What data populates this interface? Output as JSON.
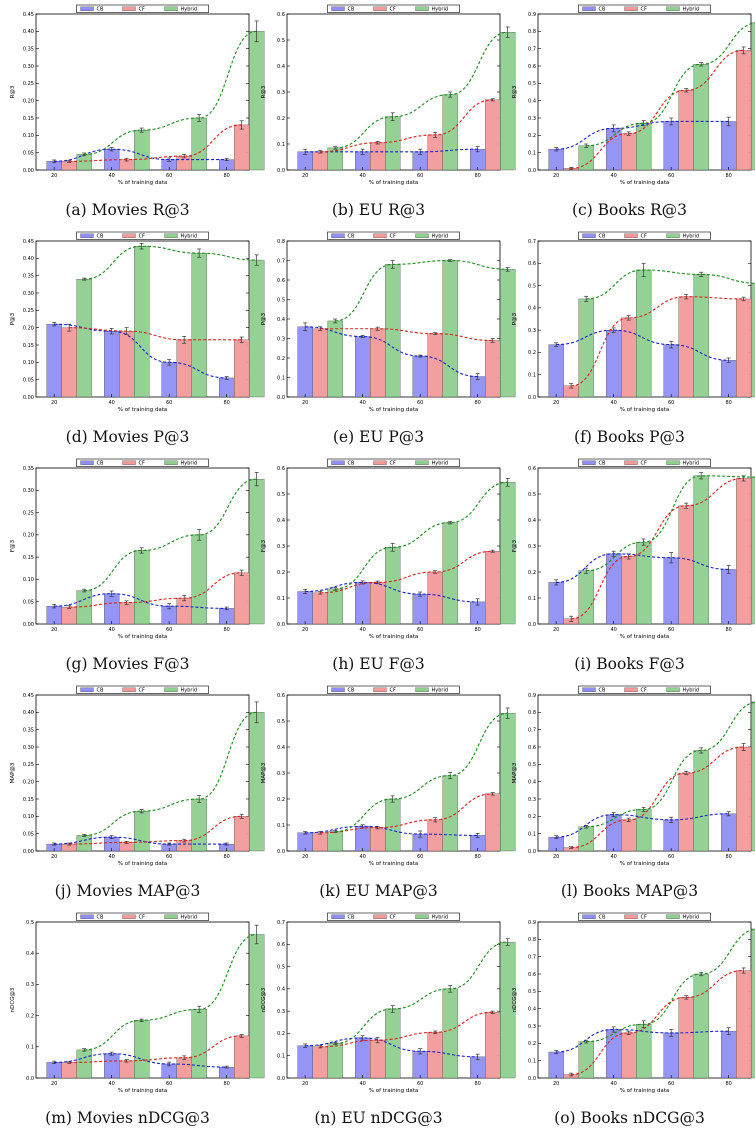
{
  "colors": {
    "CB": "#8f8ff5",
    "CF": "#f39a9a",
    "Hybrid": "#8fcf8f",
    "CB_line": "#1a24c8",
    "CF_line": "#d8241e",
    "Hybrid_line": "#1e8a1e"
  },
  "legend": [
    "CB",
    "CF",
    "Hybrid"
  ],
  "chart_data": [
    {
      "type": "bar",
      "caption": "(a) Movies R@3",
      "ylabel": "R@3",
      "xlabel": "% of training data",
      "categories": [
        "20",
        "40",
        "60",
        "80"
      ],
      "ylim": [
        0,
        0.45
      ],
      "yticks": [
        "0.00",
        "0.05",
        "0.10",
        "0.15",
        "0.20",
        "0.25",
        "0.30",
        "0.35",
        "0.40",
        "0.45"
      ],
      "series": [
        {
          "name": "CB",
          "values": [
            0.025,
            0.06,
            0.03,
            0.03
          ],
          "errors": [
            0.004,
            0.005,
            0.005,
            0.003
          ]
        },
        {
          "name": "CF",
          "values": [
            0.025,
            0.03,
            0.04,
            0.13
          ],
          "errors": [
            0.003,
            0.004,
            0.005,
            0.012
          ]
        },
        {
          "name": "Hybrid",
          "values": [
            0.045,
            0.115,
            0.15,
            0.4
          ],
          "errors": [
            0.004,
            0.006,
            0.01,
            0.03
          ]
        }
      ]
    },
    {
      "type": "bar",
      "caption": "(b) EU R@3",
      "ylabel": "R@3",
      "xlabel": "% of training data",
      "categories": [
        "20",
        "40",
        "60",
        "80"
      ],
      "ylim": [
        0,
        0.6
      ],
      "yticks": [
        "0.0",
        "0.1",
        "0.2",
        "0.3",
        "0.4",
        "0.5",
        "0.6"
      ],
      "series": [
        {
          "name": "CB",
          "values": [
            0.07,
            0.07,
            0.07,
            0.08
          ],
          "errors": [
            0.01,
            0.01,
            0.01,
            0.01
          ]
        },
        {
          "name": "CF",
          "values": [
            0.07,
            0.105,
            0.135,
            0.27
          ],
          "errors": [
            0.005,
            0.005,
            0.01,
            0.004
          ]
        },
        {
          "name": "Hybrid",
          "values": [
            0.085,
            0.205,
            0.29,
            0.53
          ],
          "errors": [
            0.005,
            0.015,
            0.01,
            0.02
          ]
        }
      ]
    },
    {
      "type": "bar",
      "caption": "(c) Books R@3",
      "ylabel": "R@3",
      "xlabel": "% of training data",
      "categories": [
        "20",
        "40",
        "60",
        "80"
      ],
      "ylim": [
        0,
        0.9
      ],
      "yticks": [
        "0.0",
        "0.1",
        "0.2",
        "0.3",
        "0.4",
        "0.5",
        "0.6",
        "0.7",
        "0.8",
        "0.9"
      ],
      "series": [
        {
          "name": "CB",
          "values": [
            0.12,
            0.24,
            0.28,
            0.28
          ],
          "errors": [
            0.01,
            0.02,
            0.02,
            0.025
          ]
        },
        {
          "name": "CF",
          "values": [
            0.01,
            0.21,
            0.46,
            0.69
          ],
          "errors": [
            0.005,
            0.01,
            0.01,
            0.02
          ]
        },
        {
          "name": "Hybrid",
          "values": [
            0.14,
            0.27,
            0.61,
            0.85
          ],
          "errors": [
            0.01,
            0.015,
            0.01,
            0.02
          ]
        }
      ]
    },
    {
      "type": "bar",
      "caption": "(d) Movies P@3",
      "ylabel": "P@3",
      "xlabel": "% of training data",
      "categories": [
        "20",
        "40",
        "60",
        "80"
      ],
      "ylim": [
        0,
        0.45
      ],
      "yticks": [
        "0.00",
        "0.05",
        "0.10",
        "0.15",
        "0.20",
        "0.25",
        "0.30",
        "0.35",
        "0.40",
        "0.45"
      ],
      "series": [
        {
          "name": "CB",
          "values": [
            0.21,
            0.19,
            0.1,
            0.055
          ],
          "errors": [
            0.005,
            0.008,
            0.008,
            0.004
          ]
        },
        {
          "name": "CF",
          "values": [
            0.2,
            0.19,
            0.165,
            0.165
          ],
          "errors": [
            0.01,
            0.01,
            0.01,
            0.008
          ]
        },
        {
          "name": "Hybrid",
          "values": [
            0.34,
            0.435,
            0.415,
            0.395
          ],
          "errors": [
            0.003,
            0.008,
            0.012,
            0.015
          ]
        }
      ]
    },
    {
      "type": "bar",
      "caption": "(e) EU P@3",
      "ylabel": "P@3",
      "xlabel": "% of training data",
      "categories": [
        "20",
        "40",
        "60",
        "80"
      ],
      "ylim": [
        0,
        0.8
      ],
      "yticks": [
        "0.0",
        "0.1",
        "0.2",
        "0.3",
        "0.4",
        "0.5",
        "0.6",
        "0.7",
        "0.8"
      ],
      "series": [
        {
          "name": "CB",
          "values": [
            0.36,
            0.31,
            0.21,
            0.105
          ],
          "errors": [
            0.02,
            0.006,
            0.005,
            0.015
          ]
        },
        {
          "name": "CF",
          "values": [
            0.35,
            0.35,
            0.325,
            0.29
          ],
          "errors": [
            0.01,
            0.008,
            0.005,
            0.01
          ]
        },
        {
          "name": "Hybrid",
          "values": [
            0.39,
            0.68,
            0.7,
            0.655
          ],
          "errors": [
            0.01,
            0.02,
            0.005,
            0.01
          ]
        }
      ]
    },
    {
      "type": "bar",
      "caption": "(f) Books P@3",
      "ylabel": "P@3",
      "xlabel": "% of training data",
      "categories": [
        "20",
        "40",
        "60",
        "80"
      ],
      "ylim": [
        0,
        0.7
      ],
      "yticks": [
        "0.0",
        "0.1",
        "0.2",
        "0.3",
        "0.4",
        "0.5",
        "0.6",
        "0.7"
      ],
      "series": [
        {
          "name": "CB",
          "values": [
            0.235,
            0.3,
            0.235,
            0.165
          ],
          "errors": [
            0.008,
            0.01,
            0.015,
            0.01
          ]
        },
        {
          "name": "CF",
          "values": [
            0.05,
            0.355,
            0.45,
            0.44
          ],
          "errors": [
            0.01,
            0.01,
            0.01,
            0.008
          ]
        },
        {
          "name": "Hybrid",
          "values": [
            0.44,
            0.57,
            0.55,
            0.51
          ],
          "errors": [
            0.012,
            0.03,
            0.01,
            0.005
          ]
        }
      ]
    },
    {
      "type": "bar",
      "caption": "(g) Movies F@3",
      "ylabel": "F@3",
      "xlabel": "% of training data",
      "categories": [
        "20",
        "40",
        "60",
        "80"
      ],
      "ylim": [
        0,
        0.35
      ],
      "yticks": [
        "0.00",
        "0.05",
        "0.10",
        "0.15",
        "0.20",
        "0.25",
        "0.30",
        "0.35"
      ],
      "series": [
        {
          "name": "CB",
          "values": [
            0.04,
            0.068,
            0.04,
            0.035
          ],
          "errors": [
            0.004,
            0.006,
            0.006,
            0.003
          ]
        },
        {
          "name": "CF",
          "values": [
            0.038,
            0.048,
            0.058,
            0.115
          ],
          "errors": [
            0.003,
            0.004,
            0.006,
            0.006
          ]
        },
        {
          "name": "Hybrid",
          "values": [
            0.075,
            0.165,
            0.2,
            0.325
          ],
          "errors": [
            0.003,
            0.006,
            0.012,
            0.015
          ]
        }
      ]
    },
    {
      "type": "bar",
      "caption": "(h) EU F@3",
      "ylabel": "F@3",
      "xlabel": "% of training data",
      "categories": [
        "20",
        "40",
        "60",
        "80"
      ],
      "ylim": [
        0,
        0.6
      ],
      "yticks": [
        "0.0",
        "0.1",
        "0.2",
        "0.3",
        "0.4",
        "0.5",
        "0.6"
      ],
      "series": [
        {
          "name": "CB",
          "values": [
            0.125,
            0.16,
            0.115,
            0.085
          ],
          "errors": [
            0.008,
            0.006,
            0.008,
            0.012
          ]
        },
        {
          "name": "CF",
          "values": [
            0.12,
            0.16,
            0.2,
            0.28
          ],
          "errors": [
            0.005,
            0.005,
            0.005,
            0.004
          ]
        },
        {
          "name": "Hybrid",
          "values": [
            0.135,
            0.295,
            0.39,
            0.545
          ],
          "errors": [
            0.005,
            0.015,
            0.005,
            0.015
          ]
        }
      ]
    },
    {
      "type": "bar",
      "caption": "(i) Books F@3",
      "ylabel": "F@3",
      "xlabel": "% of training data",
      "categories": [
        "20",
        "40",
        "60",
        "80"
      ],
      "ylim": [
        0,
        0.6
      ],
      "yticks": [
        "0.0",
        "0.1",
        "0.2",
        "0.3",
        "0.4",
        "0.5",
        "0.6"
      ],
      "series": [
        {
          "name": "CB",
          "values": [
            0.16,
            0.27,
            0.255,
            0.21
          ],
          "errors": [
            0.01,
            0.01,
            0.02,
            0.015
          ]
        },
        {
          "name": "CF",
          "values": [
            0.02,
            0.26,
            0.455,
            0.56
          ],
          "errors": [
            0.01,
            0.01,
            0.01,
            0.01
          ]
        },
        {
          "name": "Hybrid",
          "values": [
            0.205,
            0.315,
            0.57,
            0.565
          ],
          "errors": [
            0.01,
            0.012,
            0.012,
            0.005
          ]
        }
      ]
    },
    {
      "type": "bar",
      "caption": "(j) Movies MAP@3",
      "ylabel": "MAP@3",
      "xlabel": "% of training data",
      "categories": [
        "20",
        "40",
        "60",
        "80"
      ],
      "ylim": [
        0,
        0.45
      ],
      "yticks": [
        "0.00",
        "0.05",
        "0.10",
        "0.15",
        "0.20",
        "0.25",
        "0.30",
        "0.35",
        "0.40",
        "0.45"
      ],
      "series": [
        {
          "name": "CB",
          "values": [
            0.02,
            0.04,
            0.02,
            0.02
          ],
          "errors": [
            0.003,
            0.004,
            0.003,
            0.003
          ]
        },
        {
          "name": "CF",
          "values": [
            0.02,
            0.025,
            0.03,
            0.1
          ],
          "errors": [
            0.003,
            0.003,
            0.004,
            0.006
          ]
        },
        {
          "name": "Hybrid",
          "values": [
            0.045,
            0.115,
            0.15,
            0.4
          ],
          "errors": [
            0.003,
            0.005,
            0.01,
            0.03
          ]
        }
      ]
    },
    {
      "type": "bar",
      "caption": "(k) EU MAP@3",
      "ylabel": "MAP@3",
      "xlabel": "% of training data",
      "categories": [
        "20",
        "40",
        "60",
        "80"
      ],
      "ylim": [
        0,
        0.6
      ],
      "yticks": [
        "0.0",
        "0.1",
        "0.2",
        "0.3",
        "0.4",
        "0.5",
        "0.6"
      ],
      "series": [
        {
          "name": "CB",
          "values": [
            0.07,
            0.095,
            0.065,
            0.06
          ],
          "errors": [
            0.005,
            0.006,
            0.012,
            0.008
          ]
        },
        {
          "name": "CF",
          "values": [
            0.07,
            0.09,
            0.12,
            0.22
          ],
          "errors": [
            0.005,
            0.005,
            0.008,
            0.005
          ]
        },
        {
          "name": "Hybrid",
          "values": [
            0.075,
            0.2,
            0.29,
            0.53
          ],
          "errors": [
            0.004,
            0.012,
            0.012,
            0.02
          ]
        }
      ]
    },
    {
      "type": "bar",
      "caption": "(l) Books MAP@3",
      "ylabel": "MAP@3",
      "xlabel": "% of training data",
      "categories": [
        "20",
        "40",
        "60",
        "80"
      ],
      "ylim": [
        0,
        0.9
      ],
      "yticks": [
        "0.0",
        "0.1",
        "0.2",
        "0.3",
        "0.4",
        "0.5",
        "0.6",
        "0.7",
        "0.8",
        "0.9"
      ],
      "series": [
        {
          "name": "CB",
          "values": [
            0.08,
            0.21,
            0.18,
            0.215
          ],
          "errors": [
            0.008,
            0.012,
            0.015,
            0.012
          ]
        },
        {
          "name": "CF",
          "values": [
            0.02,
            0.18,
            0.45,
            0.6
          ],
          "errors": [
            0.005,
            0.01,
            0.01,
            0.02
          ]
        },
        {
          "name": "Hybrid",
          "values": [
            0.14,
            0.24,
            0.58,
            0.86
          ],
          "errors": [
            0.008,
            0.012,
            0.015,
            0.01
          ]
        }
      ]
    },
    {
      "type": "bar",
      "caption": "(m) Movies nDCG@3",
      "ylabel": "nDCG@3",
      "xlabel": "% of training data",
      "categories": [
        "20",
        "40",
        "60",
        "80"
      ],
      "ylim": [
        0,
        0.5
      ],
      "yticks": [
        "0.0",
        "0.1",
        "0.2",
        "0.3",
        "0.4",
        "0.5"
      ],
      "series": [
        {
          "name": "CB",
          "values": [
            0.05,
            0.078,
            0.045,
            0.035
          ],
          "errors": [
            0.004,
            0.005,
            0.006,
            0.003
          ]
        },
        {
          "name": "CF",
          "values": [
            0.05,
            0.055,
            0.065,
            0.135
          ],
          "errors": [
            0.003,
            0.004,
            0.006,
            0.005
          ]
        },
        {
          "name": "Hybrid",
          "values": [
            0.09,
            0.185,
            0.22,
            0.46
          ],
          "errors": [
            0.004,
            0.004,
            0.01,
            0.03
          ]
        }
      ]
    },
    {
      "type": "bar",
      "caption": "(n) EU nDCG@3",
      "ylabel": "nDCG@3",
      "xlabel": "% of training data",
      "categories": [
        "20",
        "40",
        "60",
        "80"
      ],
      "ylim": [
        0,
        0.7
      ],
      "yticks": [
        "0.0",
        "0.1",
        "0.2",
        "0.3",
        "0.4",
        "0.5",
        "0.6",
        "0.7"
      ],
      "series": [
        {
          "name": "CB",
          "values": [
            0.145,
            0.18,
            0.12,
            0.095
          ],
          "errors": [
            0.008,
            0.01,
            0.012,
            0.012
          ]
        },
        {
          "name": "CF",
          "values": [
            0.14,
            0.17,
            0.205,
            0.295
          ],
          "errors": [
            0.005,
            0.012,
            0.006,
            0.005
          ]
        },
        {
          "name": "Hybrid",
          "values": [
            0.155,
            0.31,
            0.4,
            0.61
          ],
          "errors": [
            0.005,
            0.015,
            0.015,
            0.015
          ]
        }
      ]
    },
    {
      "type": "bar",
      "caption": "(o) Books nDCG@3",
      "ylabel": "nDCG@3",
      "xlabel": "% of training data",
      "categories": [
        "20",
        "40",
        "60",
        "80"
      ],
      "ylim": [
        0,
        0.9
      ],
      "yticks": [
        "0.0",
        "0.1",
        "0.2",
        "0.3",
        "0.4",
        "0.5",
        "0.6",
        "0.7",
        "0.8",
        "0.9"
      ],
      "series": [
        {
          "name": "CB",
          "values": [
            0.15,
            0.28,
            0.26,
            0.27
          ],
          "errors": [
            0.01,
            0.015,
            0.02,
            0.02
          ]
        },
        {
          "name": "CF",
          "values": [
            0.02,
            0.26,
            0.465,
            0.62
          ],
          "errors": [
            0.008,
            0.01,
            0.01,
            0.015
          ]
        },
        {
          "name": "Hybrid",
          "values": [
            0.21,
            0.31,
            0.6,
            0.86
          ],
          "errors": [
            0.008,
            0.02,
            0.01,
            0.01
          ]
        }
      ]
    }
  ]
}
